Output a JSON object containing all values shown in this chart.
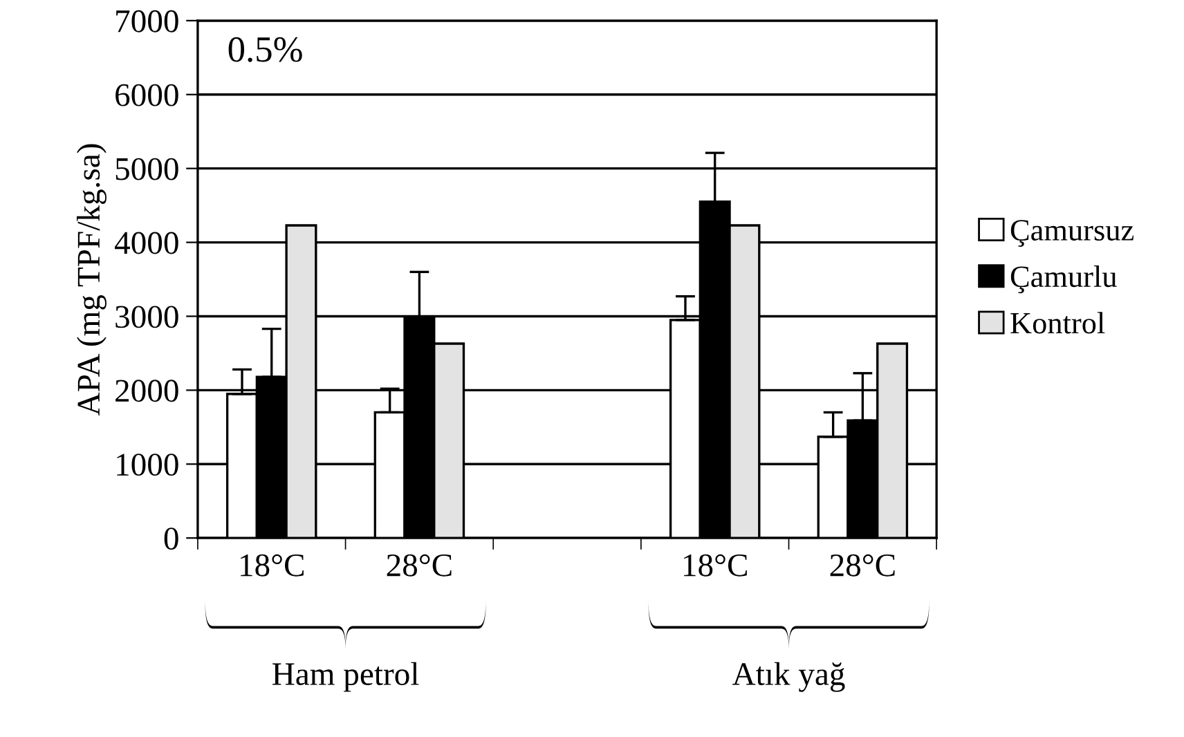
{
  "chart_data": {
    "type": "bar",
    "ylabel": "APA (mg TPF/kg.sa)",
    "categories": [
      "18°C",
      "28°C",
      null,
      "18°C",
      "28°C"
    ],
    "series": [
      {
        "name": "Çamursuz",
        "color": "#ffffff",
        "values": [
          1950,
          1700,
          null,
          2950,
          1370
        ],
        "errors": [
          [
            1950,
            2280
          ],
          [
            1700,
            2020
          ],
          null,
          [
            2950,
            3270
          ],
          [
            1370,
            1700
          ]
        ]
      },
      {
        "name": "Çamurlu",
        "color": "#000000",
        "values": [
          2180,
          2970,
          null,
          4550,
          1590
        ],
        "errors": [
          [
            2180,
            2830
          ],
          [
            2970,
            3600
          ],
          null,
          [
            4550,
            5210
          ],
          [
            1590,
            2230
          ]
        ]
      },
      {
        "name": "Kontrol",
        "color": "#e3e3e3",
        "values": [
          4230,
          2630,
          null,
          4230,
          2630
        ]
      }
    ],
    "ylim": [
      0,
      7000
    ],
    "yticks": [
      0,
      1000,
      2000,
      3000,
      4000,
      5000,
      6000,
      7000
    ],
    "grid": "y",
    "legend": "right",
    "annotations": [
      "0.5%",
      "Ham petrol",
      "Atık yağ"
    ]
  }
}
